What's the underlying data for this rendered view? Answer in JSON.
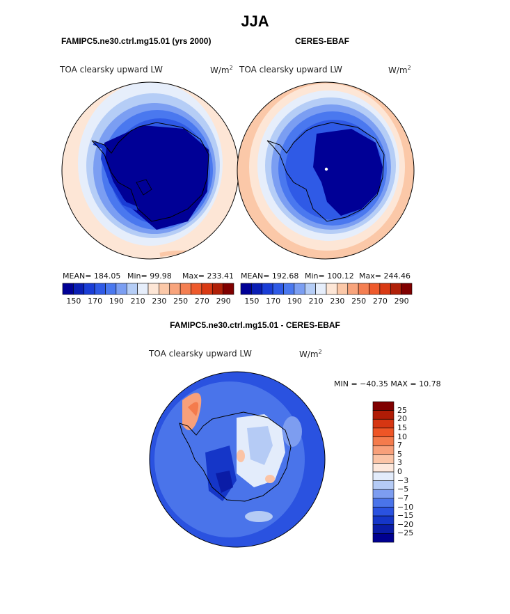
{
  "figure": {
    "season": "JJA",
    "model_title": "FAMIPC5.ne30.ctrl.mg15.01 (yrs 2000)",
    "obs_title": "CERES-EBAF",
    "diff_title": "FAMIPC5.ne30.ctrl.mg15.01 - CERES-EBAF"
  },
  "panels": {
    "model": {
      "variable": "TOA clearsky upward LW",
      "units": "W/m",
      "units_sup": "2",
      "mean_text": "MEAN= 184.05",
      "min_text": "Min=  99.98",
      "max_text": "Max= 233.41"
    },
    "obs": {
      "variable": "TOA clearsky upward LW",
      "units": "W/m",
      "units_sup": "2",
      "mean_text": "MEAN= 192.68",
      "min_text": "Min= 100.12",
      "max_text": "Max= 244.46"
    },
    "diff": {
      "variable": "TOA clearsky upward LW",
      "units": "W/m",
      "units_sup": "2",
      "minmax_text": "MIN = −40.35 MAX =  10.78"
    }
  },
  "colorbar_abs": {
    "tick_labels": [
      "150",
      "170",
      "190",
      "210",
      "230",
      "250",
      "270",
      "290"
    ],
    "colors": [
      "#000096",
      "#0a1eb4",
      "#1a3dd6",
      "#2f5ae6",
      "#4a78ef",
      "#7b9ef2",
      "#b5cdf6",
      "#e6eefb",
      "#fde6d6",
      "#fbc8a8",
      "#f8a47c",
      "#f47f52",
      "#ee5a2c",
      "#d93a14",
      "#b02008",
      "#800000"
    ]
  },
  "colorbar_diff": {
    "tick_labels": [
      "25",
      "20",
      "15",
      "10",
      "7",
      "5",
      "3",
      "0",
      "−3",
      "−5",
      "−7",
      "−10",
      "−15",
      "−20",
      "−25"
    ],
    "colors": [
      "#800000",
      "#b01c06",
      "#d63612",
      "#ee5526",
      "#f47b4c",
      "#f8a07a",
      "#fbc4a6",
      "#fde8dc",
      "#e3ecfb",
      "#b5cbf5",
      "#7d9df0",
      "#4a74ea",
      "#2a52e0",
      "#1536c8",
      "#0a1ca6",
      "#000090"
    ]
  }
}
